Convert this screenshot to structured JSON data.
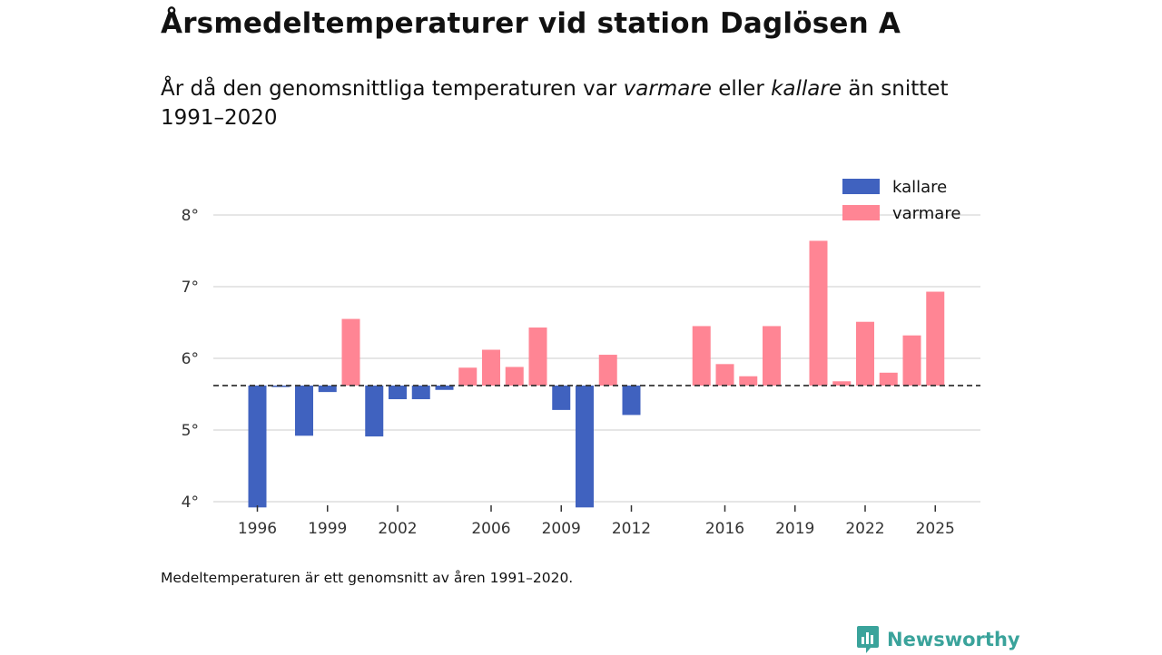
{
  "header": {
    "title": "Årsmedeltemperaturer vid station Daglösen A",
    "subtitle_part1": "År då den genomsnittliga temperaturen var ",
    "subtitle_warmer": "varmare",
    "subtitle_part2": " eller ",
    "subtitle_colder": "kallare",
    "subtitle_part3": " än snittet 1991–2020"
  },
  "footer": {
    "note": "Medeltemperaturen är ett genomsnitt av åren 1991–2020.",
    "brand": "Newsworthy"
  },
  "colors": {
    "colder": "#4062bf",
    "warmer": "#ff8594",
    "baseline": "#333333",
    "grid": "#dddddd",
    "brand": "#3aa39b"
  },
  "chart_data": {
    "type": "bar",
    "title": "Årsmedeltemperaturer vid station Daglösen A",
    "baseline": 5.62,
    "baseline_label": "snittet 1991–2020",
    "ylim": [
      4,
      8.4
    ],
    "y_ticks": [
      4,
      5,
      6,
      7,
      8
    ],
    "y_tick_labels": [
      "4°",
      "5°",
      "6°",
      "7°",
      "8°"
    ],
    "x_ticks": [
      1996,
      1999,
      2002,
      2006,
      2009,
      2012,
      2016,
      2019,
      2022,
      2025
    ],
    "x_tick_labels": [
      "1996",
      "1999",
      "2002",
      "2006",
      "2009",
      "2012",
      "2016",
      "2019",
      "2022",
      "2025"
    ],
    "x_range": [
      1994,
      2027
    ],
    "legend": [
      {
        "key": "colder",
        "label": "kallare"
      },
      {
        "key": "warmer",
        "label": "varmare"
      }
    ],
    "years": [
      1996,
      1997,
      1998,
      1999,
      2000,
      2001,
      2002,
      2003,
      2004,
      2005,
      2006,
      2007,
      2008,
      2009,
      2010,
      2011,
      2012,
      2015,
      2016,
      2017,
      2018,
      2020,
      2021,
      2022,
      2023,
      2024,
      2025
    ],
    "values": [
      3.92,
      5.6,
      4.92,
      5.53,
      6.55,
      4.91,
      5.43,
      5.43,
      5.56,
      5.87,
      6.12,
      5.88,
      6.43,
      5.28,
      3.92,
      6.05,
      5.21,
      6.45,
      5.92,
      5.75,
      6.45,
      7.64,
      5.68,
      6.51,
      5.8,
      6.32,
      6.93
    ]
  }
}
